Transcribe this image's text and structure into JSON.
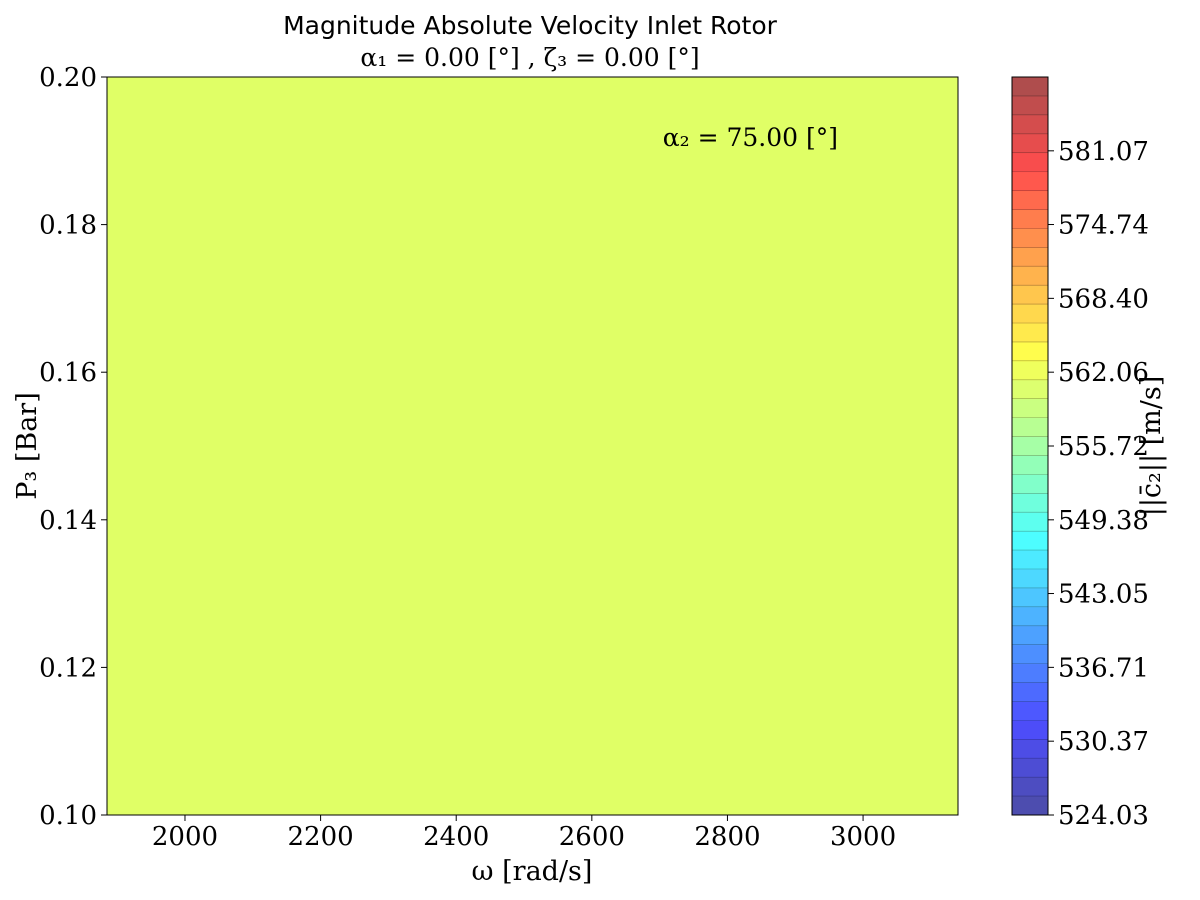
{
  "chart_data": {
    "type": "heatmap",
    "title_line1": "Magnitude Absolute Velocity Inlet Rotor",
    "title_line2": "α₁ = 0.00 [°] , ζ₃ = 0.00 [°]",
    "xlabel": "ω [rad/s]",
    "ylabel": "P₃ [Bar]",
    "colorbar_label": "||c̄₂|| [m/s]",
    "annotation": "α₂ = 75.00 [°]",
    "xlim": [
      1885,
      3140
    ],
    "ylim": [
      0.1,
      0.2
    ],
    "x_ticks": [
      2000,
      2200,
      2400,
      2600,
      2800,
      3000
    ],
    "x_tick_labels": [
      "2000",
      "2200",
      "2400",
      "2600",
      "2800",
      "3000"
    ],
    "y_ticks": [
      0.1,
      0.12,
      0.14,
      0.16,
      0.18,
      0.2
    ],
    "y_tick_labels": [
      "0.10",
      "0.12",
      "0.14",
      "0.16",
      "0.18",
      "0.20"
    ],
    "field_value": 561.3,
    "field_color": "#e0ff66",
    "colorbar": {
      "min": 524.03,
      "max": 587.41,
      "levels": 39,
      "ticks": [
        524.03,
        530.37,
        536.71,
        543.05,
        549.38,
        555.72,
        562.06,
        568.4,
        574.74,
        581.07
      ],
      "tick_labels": [
        "524.03",
        "530.37",
        "536.71",
        "543.05",
        "549.38",
        "555.72",
        "562.06",
        "568.40",
        "574.74",
        "581.07"
      ],
      "colormap": "jet",
      "alpha": 0.7
    }
  }
}
